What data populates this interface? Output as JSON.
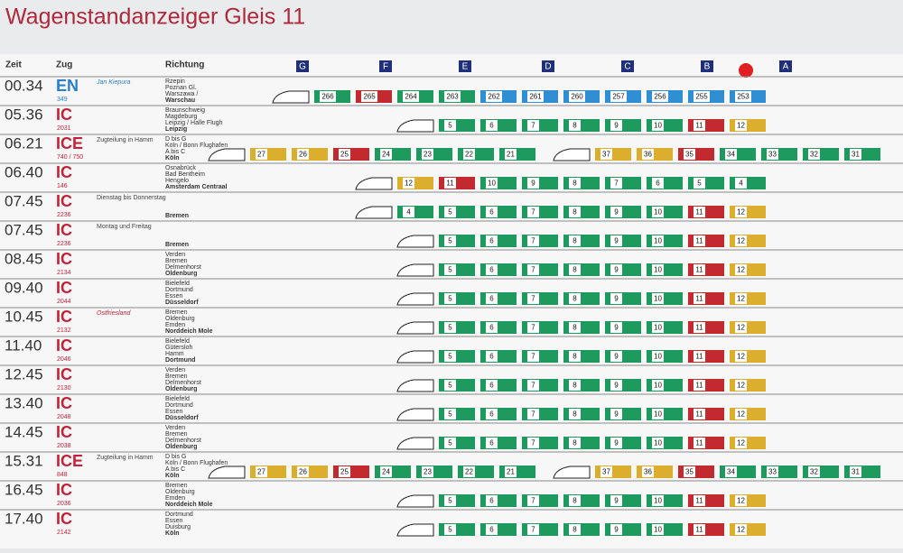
{
  "header": {
    "title": "Wagenstandanzeiger Gleis 11",
    "columns": [
      "Zeit",
      "Zug",
      "Richtung"
    ],
    "sectors": [
      "G",
      "F",
      "E",
      "D",
      "C",
      "B",
      "A"
    ]
  },
  "colors": {
    "g": "#1e9a5e",
    "y": "#dcae2e",
    "r": "#c22a2f",
    "b": "#2f8fd2"
  },
  "rows": [
    {
      "time": "00.34",
      "type": "EN",
      "number": "349",
      "note": "Jan Kiepura",
      "dest": [
        "Rzepin",
        "Poznan Gl.",
        "Warszawa /",
        "Warschau"
      ],
      "coaches": [
        [
          {
            "n": "266",
            "c": "g"
          },
          {
            "n": "265",
            "c": "r"
          },
          {
            "n": "264",
            "c": "g"
          },
          {
            "n": "263",
            "c": "g"
          },
          {
            "n": "262",
            "c": "b"
          },
          {
            "n": "261",
            "c": "b"
          },
          {
            "n": "260",
            "c": "b"
          },
          {
            "n": "257",
            "c": "b"
          },
          {
            "n": "256",
            "c": "b"
          },
          {
            "n": "255",
            "c": "b"
          },
          {
            "n": "253",
            "c": "b"
          }
        ]
      ]
    },
    {
      "time": "05.36",
      "type": "IC",
      "number": "2031",
      "note": "",
      "dest": [
        "Braunschweig",
        "Magdeburg",
        "Leipzig / Halle Flugh",
        "Leipzig"
      ],
      "coaches": [
        [
          {
            "n": "5",
            "c": "g"
          },
          {
            "n": "6",
            "c": "g"
          },
          {
            "n": "7",
            "c": "g"
          },
          {
            "n": "8",
            "c": "g"
          },
          {
            "n": "9",
            "c": "g"
          },
          {
            "n": "10",
            "c": "g"
          },
          {
            "n": "11",
            "c": "r"
          },
          {
            "n": "12",
            "c": "y"
          }
        ]
      ]
    },
    {
      "time": "06.21",
      "type": "ICE",
      "number": "740 / 750",
      "note": "Zugteilung in Hamm",
      "dest": [
        "D bis G",
        "Köln / Bonn Flughafen",
        "A bis C",
        "Köln"
      ],
      "coaches": [
        [
          {
            "n": "27",
            "c": "y"
          },
          {
            "n": "26",
            "c": "y"
          },
          {
            "n": "25",
            "c": "r"
          },
          {
            "n": "24",
            "c": "g"
          },
          {
            "n": "23",
            "c": "g"
          },
          {
            "n": "22",
            "c": "g"
          },
          {
            "n": "21",
            "c": "g"
          }
        ],
        [
          {
            "n": "37",
            "c": "y"
          },
          {
            "n": "36",
            "c": "y"
          },
          {
            "n": "35",
            "c": "r"
          },
          {
            "n": "34",
            "c": "g"
          },
          {
            "n": "33",
            "c": "g"
          },
          {
            "n": "32",
            "c": "g"
          },
          {
            "n": "31",
            "c": "g"
          }
        ]
      ]
    },
    {
      "time": "06.40",
      "type": "IC",
      "number": "146",
      "note": "",
      "dest": [
        "Osnabrück",
        "Bad Bentheim",
        "Hengelo",
        "Amsterdam Centraal"
      ],
      "coaches": [
        [
          {
            "n": "12",
            "c": "y"
          },
          {
            "n": "11",
            "c": "r"
          },
          {
            "n": "10",
            "c": "g"
          },
          {
            "n": "9",
            "c": "g"
          },
          {
            "n": "8",
            "c": "g"
          },
          {
            "n": "7",
            "c": "g"
          },
          {
            "n": "6",
            "c": "g"
          },
          {
            "n": "5",
            "c": "g"
          },
          {
            "n": "4",
            "c": "g"
          }
        ]
      ]
    },
    {
      "time": "07.45",
      "type": "IC",
      "number": "2236",
      "note": "Dienstag bis Donnerstag",
      "dest": [
        "",
        "",
        "",
        "Bremen"
      ],
      "coaches": [
        [
          {
            "n": "4",
            "c": "g"
          },
          {
            "n": "5",
            "c": "g"
          },
          {
            "n": "6",
            "c": "g"
          },
          {
            "n": "7",
            "c": "g"
          },
          {
            "n": "8",
            "c": "g"
          },
          {
            "n": "9",
            "c": "g"
          },
          {
            "n": "10",
            "c": "g"
          },
          {
            "n": "11",
            "c": "r"
          },
          {
            "n": "12",
            "c": "y"
          }
        ]
      ]
    },
    {
      "time": "07.45",
      "type": "IC",
      "number": "2236",
      "note": "Montag und Freitag",
      "dest": [
        "",
        "",
        "",
        "Bremen"
      ],
      "coaches": [
        [
          {
            "n": "5",
            "c": "g"
          },
          {
            "n": "6",
            "c": "g"
          },
          {
            "n": "7",
            "c": "g"
          },
          {
            "n": "8",
            "c": "g"
          },
          {
            "n": "9",
            "c": "g"
          },
          {
            "n": "10",
            "c": "g"
          },
          {
            "n": "11",
            "c": "r"
          },
          {
            "n": "12",
            "c": "y"
          }
        ]
      ]
    },
    {
      "time": "08.45",
      "type": "IC",
      "number": "2134",
      "note": "",
      "dest": [
        "Verden",
        "Bremen",
        "Delmenhorst",
        "Oldenburg"
      ],
      "coaches": [
        [
          {
            "n": "5",
            "c": "g"
          },
          {
            "n": "6",
            "c": "g"
          },
          {
            "n": "7",
            "c": "g"
          },
          {
            "n": "8",
            "c": "g"
          },
          {
            "n": "9",
            "c": "g"
          },
          {
            "n": "10",
            "c": "g"
          },
          {
            "n": "11",
            "c": "r"
          },
          {
            "n": "12",
            "c": "y"
          }
        ]
      ]
    },
    {
      "time": "09.40",
      "type": "IC",
      "number": "2044",
      "note": "",
      "dest": [
        "Bielefeld",
        "Dortmund",
        "Essen",
        "Düsseldorf"
      ],
      "coaches": [
        [
          {
            "n": "5",
            "c": "g"
          },
          {
            "n": "6",
            "c": "g"
          },
          {
            "n": "7",
            "c": "g"
          },
          {
            "n": "8",
            "c": "g"
          },
          {
            "n": "9",
            "c": "g"
          },
          {
            "n": "10",
            "c": "g"
          },
          {
            "n": "11",
            "c": "r"
          },
          {
            "n": "12",
            "c": "y"
          }
        ]
      ]
    },
    {
      "time": "10.45",
      "type": "IC",
      "number": "2132",
      "note": "Ostfriesland",
      "dest": [
        "Bremen",
        "Oldenburg",
        "Emden",
        "Norddeich Mole"
      ],
      "coaches": [
        [
          {
            "n": "5",
            "c": "g"
          },
          {
            "n": "6",
            "c": "g"
          },
          {
            "n": "7",
            "c": "g"
          },
          {
            "n": "8",
            "c": "g"
          },
          {
            "n": "9",
            "c": "g"
          },
          {
            "n": "10",
            "c": "g"
          },
          {
            "n": "11",
            "c": "r"
          },
          {
            "n": "12",
            "c": "y"
          }
        ]
      ]
    },
    {
      "time": "11.40",
      "type": "IC",
      "number": "2046",
      "note": "",
      "dest": [
        "Bielefeld",
        "Gütersloh",
        "Hamm",
        "Dortmund"
      ],
      "coaches": [
        [
          {
            "n": "5",
            "c": "g"
          },
          {
            "n": "6",
            "c": "g"
          },
          {
            "n": "7",
            "c": "g"
          },
          {
            "n": "8",
            "c": "g"
          },
          {
            "n": "9",
            "c": "g"
          },
          {
            "n": "10",
            "c": "g"
          },
          {
            "n": "11",
            "c": "r"
          },
          {
            "n": "12",
            "c": "y"
          }
        ]
      ]
    },
    {
      "time": "12.45",
      "type": "IC",
      "number": "2130",
      "note": "",
      "dest": [
        "Verden",
        "Bremen",
        "Delmenhorst",
        "Oldenburg"
      ],
      "coaches": [
        [
          {
            "n": "5",
            "c": "g"
          },
          {
            "n": "6",
            "c": "g"
          },
          {
            "n": "7",
            "c": "g"
          },
          {
            "n": "8",
            "c": "g"
          },
          {
            "n": "9",
            "c": "g"
          },
          {
            "n": "10",
            "c": "g"
          },
          {
            "n": "11",
            "c": "r"
          },
          {
            "n": "12",
            "c": "y"
          }
        ]
      ]
    },
    {
      "time": "13.40",
      "type": "IC",
      "number": "2048",
      "note": "",
      "dest": [
        "Bielefeld",
        "Dortmund",
        "Essen",
        "Düsseldorf"
      ],
      "coaches": [
        [
          {
            "n": "5",
            "c": "g"
          },
          {
            "n": "6",
            "c": "g"
          },
          {
            "n": "7",
            "c": "g"
          },
          {
            "n": "8",
            "c": "g"
          },
          {
            "n": "9",
            "c": "g"
          },
          {
            "n": "10",
            "c": "g"
          },
          {
            "n": "11",
            "c": "r"
          },
          {
            "n": "12",
            "c": "y"
          }
        ]
      ]
    },
    {
      "time": "14.45",
      "type": "IC",
      "number": "2038",
      "note": "",
      "dest": [
        "Verden",
        "Bremen",
        "Delmenhorst",
        "Oldenburg"
      ],
      "coaches": [
        [
          {
            "n": "5",
            "c": "g"
          },
          {
            "n": "6",
            "c": "g"
          },
          {
            "n": "7",
            "c": "g"
          },
          {
            "n": "8",
            "c": "g"
          },
          {
            "n": "9",
            "c": "g"
          },
          {
            "n": "10",
            "c": "g"
          },
          {
            "n": "11",
            "c": "r"
          },
          {
            "n": "12",
            "c": "y"
          }
        ]
      ]
    },
    {
      "time": "15.31",
      "type": "ICE",
      "number": "848",
      "note": "Zugteilung in Hamm",
      "dest": [
        "D bis G",
        "Köln / Bonn Flughafen",
        "A bis C",
        "Köln"
      ],
      "coaches": [
        [
          {
            "n": "27",
            "c": "y"
          },
          {
            "n": "26",
            "c": "y"
          },
          {
            "n": "25",
            "c": "r"
          },
          {
            "n": "24",
            "c": "g"
          },
          {
            "n": "23",
            "c": "g"
          },
          {
            "n": "22",
            "c": "g"
          },
          {
            "n": "21",
            "c": "g"
          }
        ],
        [
          {
            "n": "37",
            "c": "y"
          },
          {
            "n": "36",
            "c": "y"
          },
          {
            "n": "35",
            "c": "r"
          },
          {
            "n": "34",
            "c": "g"
          },
          {
            "n": "33",
            "c": "g"
          },
          {
            "n": "32",
            "c": "g"
          },
          {
            "n": "31",
            "c": "g"
          }
        ]
      ]
    },
    {
      "time": "16.45",
      "type": "IC",
      "number": "2036",
      "note": "",
      "dest": [
        "Bremen",
        "Oldenburg",
        "Emden",
        "Norddeich Mole"
      ],
      "coaches": [
        [
          {
            "n": "5",
            "c": "g"
          },
          {
            "n": "6",
            "c": "g"
          },
          {
            "n": "7",
            "c": "g"
          },
          {
            "n": "8",
            "c": "g"
          },
          {
            "n": "9",
            "c": "g"
          },
          {
            "n": "10",
            "c": "g"
          },
          {
            "n": "11",
            "c": "r"
          },
          {
            "n": "12",
            "c": "y"
          }
        ]
      ]
    },
    {
      "time": "17.40",
      "type": "IC",
      "number": "2142",
      "note": "",
      "dest": [
        "Dortmund",
        "Essen",
        "Duisburg",
        "Köln"
      ],
      "coaches": [
        [
          {
            "n": "5",
            "c": "g"
          },
          {
            "n": "6",
            "c": "g"
          },
          {
            "n": "7",
            "c": "g"
          },
          {
            "n": "8",
            "c": "g"
          },
          {
            "n": "9",
            "c": "g"
          },
          {
            "n": "10",
            "c": "g"
          },
          {
            "n": "11",
            "c": "r"
          },
          {
            "n": "12",
            "c": "y"
          }
        ]
      ]
    }
  ]
}
